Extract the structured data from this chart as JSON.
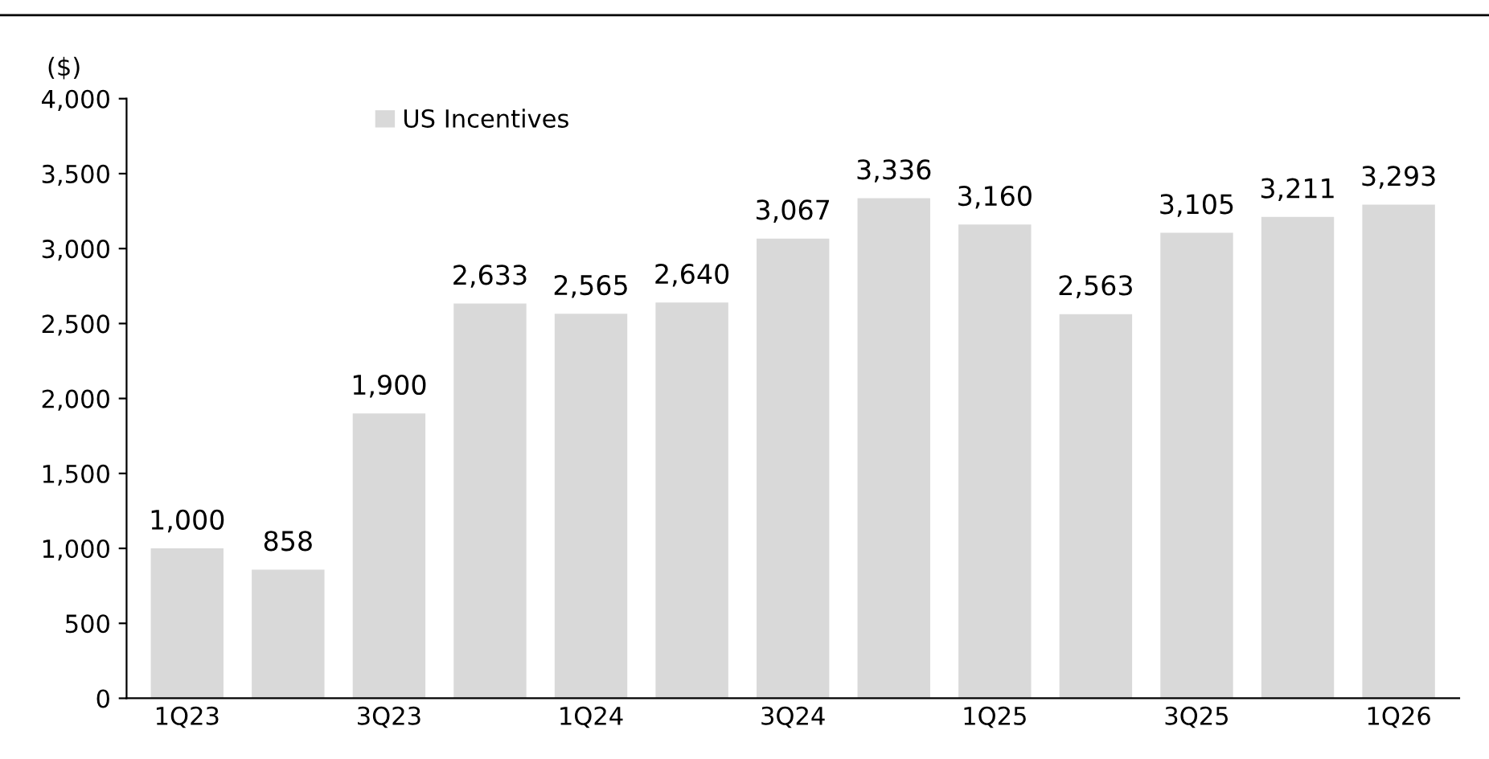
{
  "chart_data": {
    "type": "bar",
    "ylabel": "($)",
    "categories": [
      "1Q23",
      null,
      "3Q23",
      null,
      "1Q24",
      null,
      "3Q24",
      null,
      "1Q25",
      null,
      "3Q25",
      null,
      "1Q26"
    ],
    "series": [
      {
        "name": "US Incentives",
        "color": "#d9d9d9",
        "values": [
          1000,
          858,
          1900,
          2633,
          2565,
          2640,
          3067,
          3336,
          3160,
          2563,
          3105,
          3211,
          3293
        ],
        "value_labels": [
          "1,000",
          "858",
          "1,900",
          "2,633",
          "2,565",
          "2,640",
          "3,067",
          "3,336",
          "3,160",
          "2,563",
          "3,105",
          "3,211",
          "3,293"
        ]
      }
    ],
    "ylim": [
      0,
      4000
    ],
    "yticks": [
      {
        "value": 0,
        "label": "0"
      },
      {
        "value": 500,
        "label": "500"
      },
      {
        "value": 1000,
        "label": "1,000"
      },
      {
        "value": 1500,
        "label": "1,500"
      },
      {
        "value": 2000,
        "label": "2,000"
      },
      {
        "value": 2500,
        "label": "2,500"
      },
      {
        "value": 3000,
        "label": "3,000"
      },
      {
        "value": 3500,
        "label": "3,500"
      },
      {
        "value": 4000,
        "label": "4,000"
      }
    ],
    "grid": false,
    "legend": "top left"
  }
}
